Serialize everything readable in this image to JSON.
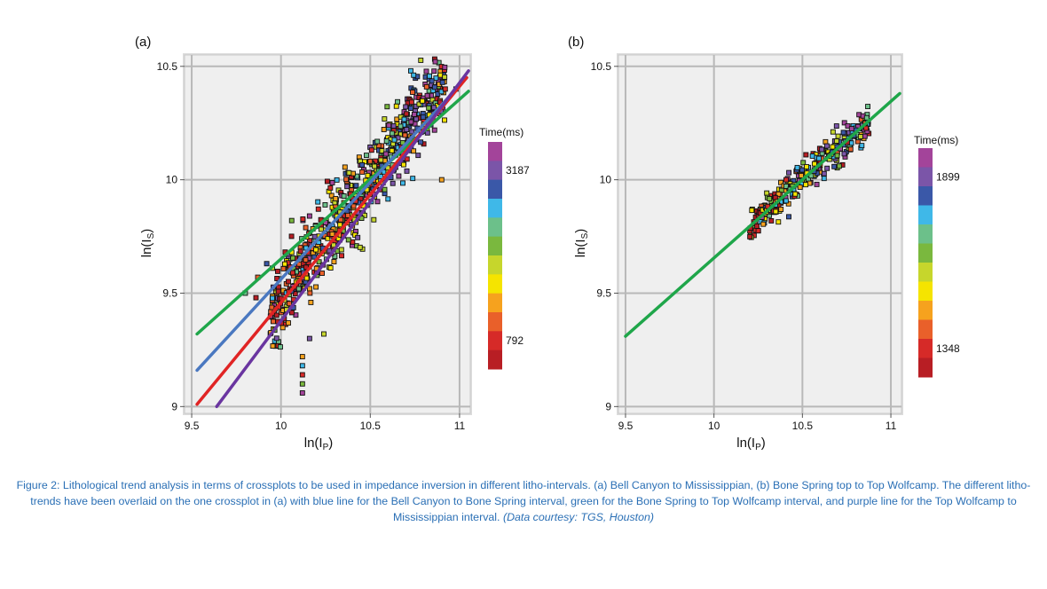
{
  "colors": {
    "blue_line": "#4a78c0",
    "green_line": "#1fa64a",
    "red_line": "#e02424",
    "purple_line": "#6a35a0",
    "plot_bg": "#efefef",
    "grid": "#b8b8b8",
    "caption": "#2a6fb5"
  },
  "colorbar_colors": [
    "#a3449a",
    "#7b55a8",
    "#3a58a8",
    "#3fb8e8",
    "#6cc08a",
    "#7ab83e",
    "#c6d62c",
    "#f5e400",
    "#f6a21e",
    "#e9602a",
    "#d62a28",
    "#b81e24"
  ],
  "chart_data": [
    {
      "type": "scatter",
      "panel_label": "(a)",
      "xlabel": "ln(I",
      "xlabel_sub": "P",
      "xlabel_close": ")",
      "ylabel": "ln(I",
      "ylabel_sub": "S",
      "ylabel_close": ")",
      "xlim": [
        9.46,
        11.06
      ],
      "ylim": [
        8.97,
        10.55
      ],
      "xticks": [
        9.5,
        10,
        10.5,
        11
      ],
      "xtick_labels": [
        "9.5",
        "10",
        "10.5",
        "11"
      ],
      "yticks": [
        9,
        9.5,
        10,
        10.5
      ],
      "ytick_labels": [
        "9",
        "9.5",
        "10",
        "10.5"
      ],
      "grid": true,
      "colorbar": {
        "title": "Time(ms)",
        "max_label": "3187",
        "min_label": "792"
      },
      "lines": [
        {
          "color_key": "green_line",
          "x": [
            9.53,
            11.05
          ],
          "y": [
            9.32,
            10.39
          ]
        },
        {
          "color_key": "blue_line",
          "x": [
            9.53,
            11.04
          ],
          "y": [
            9.16,
            10.45
          ]
        },
        {
          "color_key": "red_line",
          "x": [
            9.53,
            11.04
          ],
          "y": [
            9.01,
            10.45
          ]
        },
        {
          "color_key": "purple_line",
          "x": [
            9.64,
            11.05
          ],
          "y": [
            9.0,
            10.48
          ]
        }
      ],
      "cloud": {
        "x_range": [
          9.94,
          10.92
        ],
        "slope": 1.06,
        "intercept_at": [
          10.0,
          9.48
        ],
        "spread": 0.09,
        "count": 700
      },
      "outliers": [
        {
          "x": 10.12,
          "y": 9.06
        },
        {
          "x": 10.12,
          "y": 9.1
        },
        {
          "x": 10.12,
          "y": 9.14
        },
        {
          "x": 10.12,
          "y": 9.18
        },
        {
          "x": 10.12,
          "y": 9.22
        },
        {
          "x": 10.16,
          "y": 9.3
        },
        {
          "x": 10.24,
          "y": 9.32
        },
        {
          "x": 9.86,
          "y": 9.48
        },
        {
          "x": 9.8,
          "y": 9.5
        },
        {
          "x": 9.87,
          "y": 9.57
        },
        {
          "x": 9.92,
          "y": 9.63
        },
        {
          "x": 10.06,
          "y": 9.68
        },
        {
          "x": 10.16,
          "y": 9.84
        },
        {
          "x": 10.06,
          "y": 9.82
        },
        {
          "x": 10.92,
          "y": 10.4
        },
        {
          "x": 10.98,
          "y": 10.4
        },
        {
          "x": 10.9,
          "y": 10.0
        }
      ]
    },
    {
      "type": "scatter",
      "panel_label": "(b)",
      "xlabel": "ln(I",
      "xlabel_sub": "P",
      "xlabel_close": ")",
      "ylabel": "ln(I",
      "ylabel_sub": "S",
      "ylabel_close": ")",
      "xlim": [
        9.46,
        11.06
      ],
      "ylim": [
        8.97,
        10.55
      ],
      "xticks": [
        9.5,
        10,
        10.5,
        11
      ],
      "xtick_labels": [
        "9.5",
        "10",
        "10.5",
        "11"
      ],
      "yticks": [
        9,
        9.5,
        10,
        10.5
      ],
      "ytick_labels": [
        "9",
        "9.5",
        "10",
        "10.5"
      ],
      "grid": true,
      "colorbar": {
        "title": "Time(ms)",
        "max_label": "1899",
        "min_label": "1348"
      },
      "lines": [
        {
          "color_key": "green_line",
          "x": [
            9.5,
            11.05
          ],
          "y": [
            9.31,
            10.38
          ]
        }
      ],
      "cloud": {
        "x_range": [
          10.2,
          10.88
        ],
        "slope": 0.69,
        "intercept_at": [
          10.0,
          9.655
        ],
        "spread": 0.035,
        "count": 320
      },
      "outliers": []
    }
  ],
  "caption": {
    "text": "Figure 2: Lithological trend analysis in terms of crossplots to be used in impedance inversion in different litho-intervals. (a) Bell Canyon to Mississippian, (b) Bone Spring top to Top Wolfcamp. The different litho-trends have been overlaid on the one crossplot in (a) with blue line for the Bell Canyon to Bone Spring interval, green for the Bone Spring to Top Wolfcamp interval, and purple line for the Top Wolfcamp to Mississippian interval.",
    "courtesy": "(Data courtesy: TGS, Houston)"
  }
}
